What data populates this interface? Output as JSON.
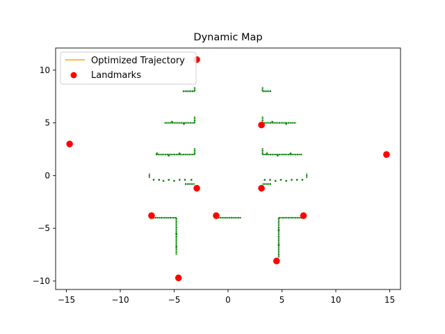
{
  "chart_data": {
    "type": "scatter",
    "title": "Dynamic Map",
    "xlabel": "",
    "ylabel": "",
    "xlim": [
      -16.0,
      16.0
    ],
    "ylim": [
      -10.8,
      12.1
    ],
    "xticks": [
      -15,
      -10,
      -5,
      0,
      5,
      10,
      15
    ],
    "yticks": [
      -10,
      -5,
      0,
      5,
      10
    ],
    "grid": false,
    "legend_position": "top-left",
    "colors": {
      "trajectory": "#ffa500",
      "landmarks": "#ff0000",
      "map": "#008000",
      "axes": "#000000"
    },
    "legend": [
      {
        "label": "Optimized Trajectory",
        "marker": "line",
        "color": "#ffa500"
      },
      {
        "label": "Landmarks",
        "marker": "dot",
        "color": "#ff0000"
      }
    ],
    "trajectory": [],
    "landmarks": [
      {
        "x": -2.9,
        "y": 11.0
      },
      {
        "x": -14.7,
        "y": 3.0
      },
      {
        "x": 3.1,
        "y": 4.8
      },
      {
        "x": 14.7,
        "y": 2.0
      },
      {
        "x": -2.9,
        "y": -1.2
      },
      {
        "x": 3.1,
        "y": -1.2
      },
      {
        "x": -7.1,
        "y": -3.8
      },
      {
        "x": -1.1,
        "y": -3.8
      },
      {
        "x": 7.0,
        "y": -3.8
      },
      {
        "x": 4.5,
        "y": -8.1
      },
      {
        "x": -4.6,
        "y": -9.7
      }
    ],
    "map_segments": [
      [
        [
          -4.2,
          8.0
        ],
        [
          -3.1,
          8.0
        ]
      ],
      [
        [
          -3.1,
          8.0
        ],
        [
          -3.1,
          8.4
        ]
      ],
      [
        [
          3.2,
          8.0
        ],
        [
          4.0,
          8.0
        ]
      ],
      [
        [
          3.2,
          8.0
        ],
        [
          3.2,
          8.4
        ]
      ],
      [
        [
          -5.9,
          5.0
        ],
        [
          -3.1,
          5.0
        ]
      ],
      [
        [
          -3.1,
          5.0
        ],
        [
          -3.1,
          5.6
        ]
      ],
      [
        [
          3.2,
          5.0
        ],
        [
          6.3,
          5.0
        ]
      ],
      [
        [
          3.2,
          5.0
        ],
        [
          3.2,
          5.6
        ]
      ],
      [
        [
          -6.7,
          2.0
        ],
        [
          -3.1,
          2.0
        ]
      ],
      [
        [
          -3.1,
          2.0
        ],
        [
          -3.1,
          2.6
        ]
      ],
      [
        [
          3.2,
          2.0
        ],
        [
          6.9,
          2.0
        ]
      ],
      [
        [
          3.2,
          2.0
        ],
        [
          3.2,
          2.6
        ]
      ],
      [
        [
          -7.3,
          -0.2
        ],
        [
          -7.3,
          0.2
        ]
      ],
      [
        [
          -4.0,
          -0.8
        ],
        [
          -3.1,
          -0.8
        ]
      ],
      [
        [
          3.2,
          -0.8
        ],
        [
          4.0,
          -0.8
        ]
      ],
      [
        [
          7.3,
          -0.2
        ],
        [
          7.3,
          0.2
        ]
      ],
      [
        [
          -7.1,
          -4.0
        ],
        [
          -4.8,
          -4.0
        ]
      ],
      [
        [
          -4.8,
          -4.0
        ],
        [
          -4.8,
          -7.5
        ]
      ],
      [
        [
          -1.1,
          -4.0
        ],
        [
          1.2,
          -4.0
        ]
      ],
      [
        [
          4.7,
          -4.0
        ],
        [
          7.0,
          -4.0
        ]
      ],
      [
        [
          4.7,
          -4.0
        ],
        [
          4.7,
          -7.8
        ]
      ]
    ],
    "map_points": [
      [
        -6.9,
        -0.4
      ],
      [
        -6.4,
        -0.4
      ],
      [
        -6.0,
        -0.5
      ],
      [
        -5.5,
        -0.4
      ],
      [
        -5.0,
        -0.5
      ],
      [
        -4.5,
        -0.4
      ],
      [
        -4.0,
        -0.4
      ],
      [
        -3.4,
        -0.4
      ],
      [
        3.4,
        -0.4
      ],
      [
        3.9,
        -0.4
      ],
      [
        4.4,
        -0.5
      ],
      [
        4.9,
        -0.4
      ],
      [
        5.4,
        -0.5
      ],
      [
        5.9,
        -0.4
      ],
      [
        6.4,
        -0.4
      ],
      [
        6.9,
        -0.4
      ],
      [
        -6.6,
        2.1
      ],
      [
        -5.5,
        1.9
      ],
      [
        -4.5,
        2.1
      ],
      [
        3.6,
        2.1
      ],
      [
        4.6,
        1.9
      ],
      [
        5.8,
        2.1
      ],
      [
        -5.2,
        5.1
      ],
      [
        -4.1,
        4.9
      ],
      [
        4.1,
        5.1
      ],
      [
        5.4,
        4.9
      ],
      [
        -4.8,
        -5.5
      ],
      [
        -4.8,
        -6.8
      ],
      [
        4.7,
        -5.2
      ],
      [
        4.7,
        -6.6
      ]
    ]
  }
}
